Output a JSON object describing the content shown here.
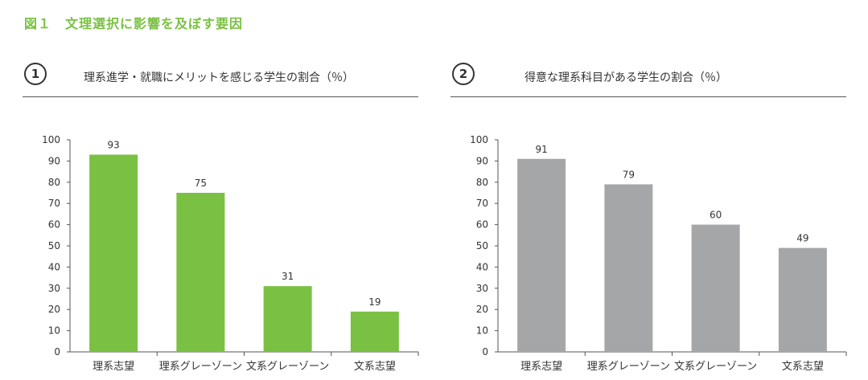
{
  "figure_title": "図１　文理選択に影響を及ぼす要因",
  "chart_data": [
    {
      "type": "bar",
      "badge": "1",
      "title": "理系進学・就職にメリットを感じる学生の割合（％）",
      "categories": [
        "理系志望",
        "理系グレーゾーン",
        "文系グレーゾーン",
        "文系志望"
      ],
      "values": [
        93,
        75,
        31,
        19
      ],
      "ylim": [
        0,
        100
      ],
      "yticks": [
        0,
        10,
        20,
        30,
        40,
        50,
        60,
        70,
        80,
        90,
        100
      ],
      "bar_color": "#7ac143",
      "grid": false,
      "xlabel": "",
      "ylabel": ""
    },
    {
      "type": "bar",
      "badge": "2",
      "title": "得意な理系科目がある学生の割合（％）",
      "categories": [
        "理系志望",
        "理系グレーゾーン",
        "文系グレーゾーン",
        "文系志望"
      ],
      "values": [
        91,
        79,
        60,
        49
      ],
      "ylim": [
        0,
        100
      ],
      "yticks": [
        0,
        10,
        20,
        30,
        40,
        50,
        60,
        70,
        80,
        90,
        100
      ],
      "bar_color": "#a5a6a8",
      "grid": false,
      "xlabel": "",
      "ylabel": ""
    }
  ]
}
